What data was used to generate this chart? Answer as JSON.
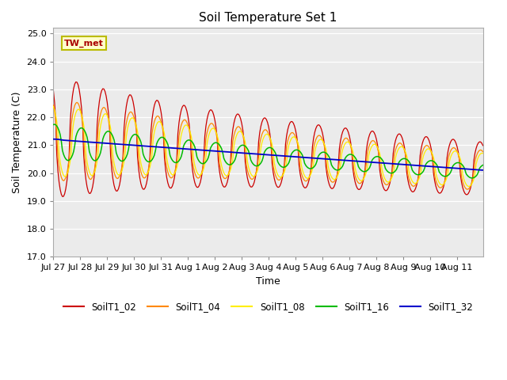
{
  "title": "Soil Temperature Set 1",
  "xlabel": "Time",
  "ylabel": "Soil Temperature (C)",
  "ylim": [
    17.0,
    25.2
  ],
  "yticks": [
    17.0,
    18.0,
    19.0,
    20.0,
    21.0,
    22.0,
    23.0,
    24.0,
    25.0
  ],
  "annotation_text": "TW_met",
  "annotation_color": "#aa0000",
  "annotation_bg": "#ffffcc",
  "annotation_border": "#bbbb00",
  "bg_color": "#ebebeb",
  "line_colors": {
    "SoilT1_02": "#cc0000",
    "SoilT1_04": "#ff8800",
    "SoilT1_08": "#ffee00",
    "SoilT1_16": "#00bb00",
    "SoilT1_32": "#0000cc"
  },
  "legend_labels": [
    "SoilT1_02",
    "SoilT1_04",
    "SoilT1_08",
    "SoilT1_16",
    "SoilT1_32"
  ],
  "x_tick_labels": [
    "Jul 27",
    "Jul 28",
    "Jul 29",
    "Jul 30",
    "Jul 31",
    "Aug 1",
    "Aug 2",
    "Aug 3",
    "Aug 4",
    "Aug 5",
    "Aug 6",
    "Aug 7",
    "Aug 8",
    "Aug 9",
    "Aug 10",
    "Aug 11"
  ],
  "title_fontsize": 11,
  "axis_fontsize": 9,
  "tick_fontsize": 8
}
